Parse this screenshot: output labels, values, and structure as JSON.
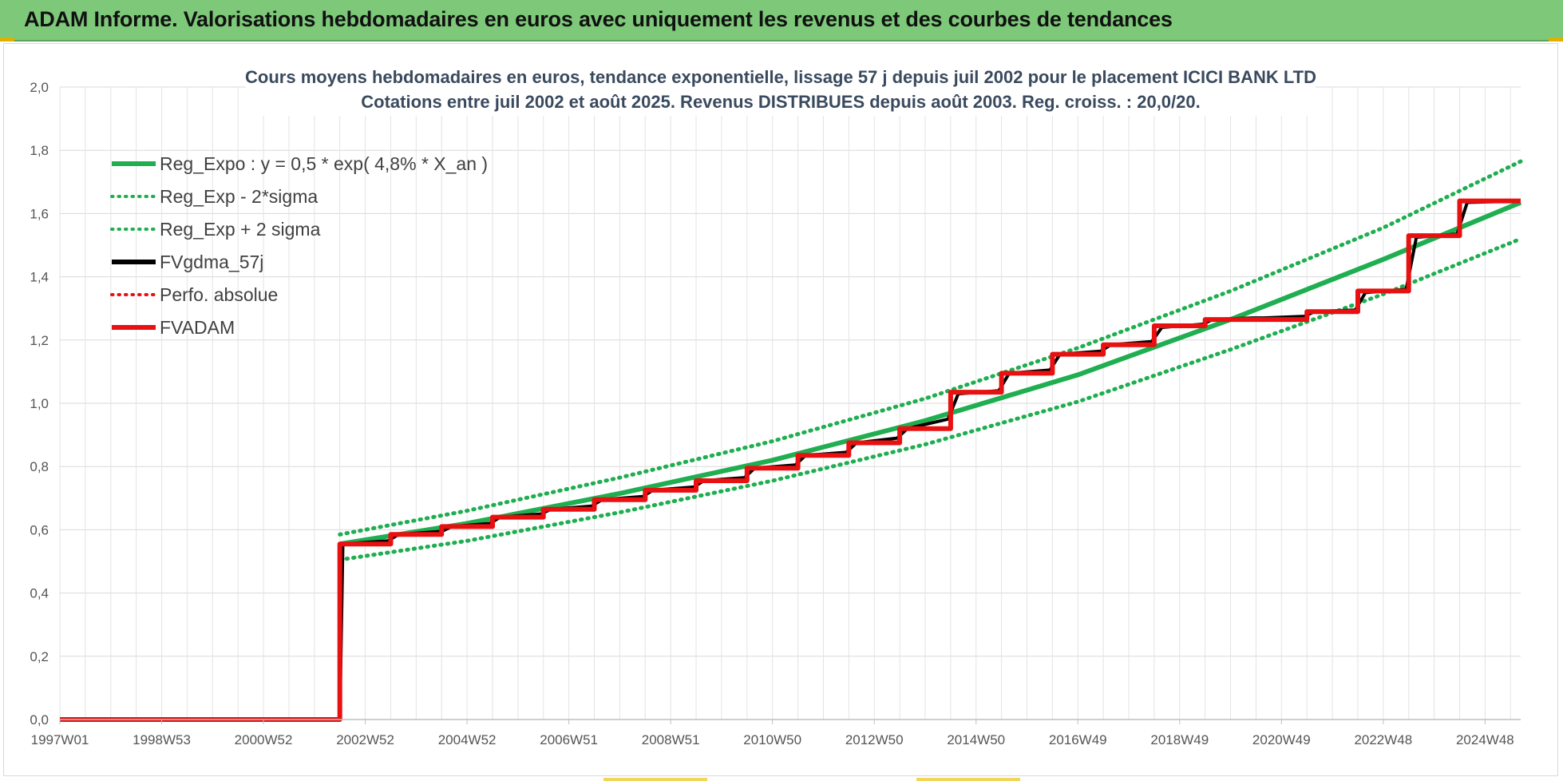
{
  "header": {
    "title": "ADAM Informe. Valorisations hebdomadaires en euros avec uniquement les revenus et des courbes de tendances"
  },
  "chart_data": {
    "type": "line",
    "title_lines": [
      "Cours moyens hebdomadaires en euros, tendance exponentielle, lissage 57 j depuis juil 2002 pour le placement ICICI BANK LTD",
      "Cotations entre juil 2002 et août 2025. Revenus DISTRIBUES depuis août 2003. Reg. croiss. : 20,0/20."
    ],
    "x_range": [
      1997.0,
      2025.7
    ],
    "ylim": [
      0,
      2.0
    ],
    "y_ticks": [
      "0,0",
      "0,2",
      "0,4",
      "0,6",
      "0,8",
      "1,0",
      "1,2",
      "1,4",
      "1,6",
      "1,8",
      "2,0"
    ],
    "x_ticks": [
      {
        "label": "1997W01",
        "x": 1997.0
      },
      {
        "label": "1998W53",
        "x": 1999.0
      },
      {
        "label": "2000W52",
        "x": 2001.0
      },
      {
        "label": "2002W52",
        "x": 2003.0
      },
      {
        "label": "2004W52",
        "x": 2005.0
      },
      {
        "label": "2006W51",
        "x": 2007.0
      },
      {
        "label": "2008W51",
        "x": 2009.0
      },
      {
        "label": "2010W50",
        "x": 2011.0
      },
      {
        "label": "2012W50",
        "x": 2013.0
      },
      {
        "label": "2014W50",
        "x": 2015.0
      },
      {
        "label": "2016W49",
        "x": 2017.0
      },
      {
        "label": "2018W49",
        "x": 2019.0
      },
      {
        "label": "2020W49",
        "x": 2021.0
      },
      {
        "label": "2022W48",
        "x": 2023.0
      },
      {
        "label": "2024W48",
        "x": 2025.0
      }
    ],
    "grid": true,
    "legend_position": "top-left",
    "series": [
      {
        "name": "Reg_Expo : y = 0,5 * exp( 4,8% *  X_an )",
        "color": "#1fae50",
        "style": "solid",
        "x": [
          2002.5,
          2005,
          2008,
          2011,
          2014,
          2017,
          2020,
          2023,
          2025.7
        ],
        "y": [
          0.555,
          0.62,
          0.715,
          0.82,
          0.945,
          1.09,
          1.265,
          1.455,
          1.635
        ]
      },
      {
        "name": "Reg_Exp - 2*sigma",
        "color": "#1fae50",
        "style": "dotted",
        "x": [
          2002.5,
          2005,
          2008,
          2011,
          2014,
          2017,
          2020,
          2023,
          2025.7
        ],
        "y": [
          0.505,
          0.565,
          0.655,
          0.755,
          0.87,
          1.005,
          1.17,
          1.345,
          1.52
        ]
      },
      {
        "name": "Reg_Exp + 2 sigma",
        "color": "#1fae50",
        "style": "dotted",
        "x": [
          2002.5,
          2005,
          2008,
          2011,
          2014,
          2017,
          2020,
          2023,
          2025.7
        ],
        "y": [
          0.585,
          0.66,
          0.765,
          0.88,
          1.015,
          1.175,
          1.355,
          1.555,
          1.765
        ]
      },
      {
        "name": "FVgdma_57j",
        "color": "#000000",
        "style": "solid",
        "x": [
          1997.0,
          2002.5,
          2002.56,
          2003.45,
          2003.65,
          2004.5,
          2004.7,
          2005.45,
          2005.65,
          2006.45,
          2006.65,
          2007.45,
          2007.65,
          2008.45,
          2008.65,
          2009.45,
          2009.65,
          2010.45,
          2010.65,
          2011.45,
          2011.65,
          2012.45,
          2012.65,
          2013.45,
          2013.65,
          2014.45,
          2014.65,
          2015.45,
          2015.65,
          2016.45,
          2016.65,
          2017.45,
          2017.65,
          2018.45,
          2018.65,
          2019.45,
          2019.65,
          2020.45,
          2020.65,
          2021.45,
          2021.65,
          2022.45,
          2022.65,
          2023.45,
          2023.65,
          2024.45,
          2024.65,
          2025.7
        ],
        "y": [
          0.0,
          0.0,
          0.555,
          0.565,
          0.585,
          0.595,
          0.61,
          0.62,
          0.64,
          0.65,
          0.665,
          0.675,
          0.695,
          0.705,
          0.725,
          0.735,
          0.755,
          0.765,
          0.795,
          0.805,
          0.835,
          0.845,
          0.875,
          0.89,
          0.92,
          0.95,
          1.03,
          1.04,
          1.095,
          1.105,
          1.155,
          1.165,
          1.185,
          1.195,
          1.24,
          1.25,
          1.265,
          1.27,
          1.27,
          1.275,
          1.29,
          1.295,
          1.35,
          1.36,
          1.525,
          1.535,
          1.635,
          1.64
        ]
      },
      {
        "name": "Perfo. absolue",
        "color": "#e81010",
        "style": "dotted",
        "x": [],
        "y": []
      },
      {
        "name": "FVADAM",
        "color": "#e81010",
        "style": "solid",
        "x": [
          1997.0,
          2002.5,
          2002.5,
          2003.5,
          2003.5,
          2004.5,
          2004.5,
          2005.5,
          2005.5,
          2006.5,
          2006.5,
          2007.5,
          2007.5,
          2008.5,
          2008.5,
          2009.5,
          2009.5,
          2010.5,
          2010.5,
          2011.5,
          2011.5,
          2012.5,
          2012.5,
          2013.5,
          2013.5,
          2014.5,
          2014.5,
          2015.5,
          2015.5,
          2016.5,
          2016.5,
          2017.5,
          2017.5,
          2018.5,
          2018.5,
          2019.5,
          2019.5,
          2021.5,
          2021.5,
          2022.5,
          2022.5,
          2023.5,
          2023.5,
          2024.5,
          2024.5,
          2025.7
        ],
        "y": [
          0.0,
          0.0,
          0.555,
          0.555,
          0.585,
          0.585,
          0.61,
          0.61,
          0.64,
          0.64,
          0.665,
          0.665,
          0.695,
          0.695,
          0.725,
          0.725,
          0.755,
          0.755,
          0.795,
          0.795,
          0.835,
          0.835,
          0.875,
          0.875,
          0.92,
          0.92,
          1.035,
          1.035,
          1.095,
          1.095,
          1.155,
          1.155,
          1.185,
          1.185,
          1.245,
          1.245,
          1.265,
          1.265,
          1.29,
          1.29,
          1.355,
          1.355,
          1.53,
          1.53,
          1.64,
          1.64
        ]
      }
    ]
  }
}
